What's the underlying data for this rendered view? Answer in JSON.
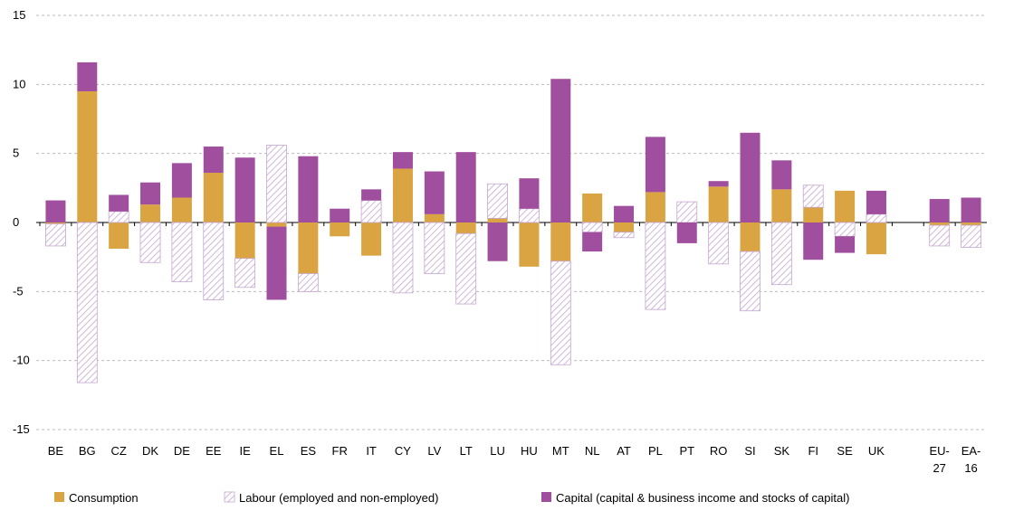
{
  "chart_data": {
    "type": "bar",
    "stacked": true,
    "grid": true,
    "legend": "bottom",
    "categories": [
      "BE",
      "BG",
      "CZ",
      "DK",
      "DE",
      "EE",
      "IE",
      "EL",
      "ES",
      "FR",
      "IT",
      "CY",
      "LV",
      "LT",
      "LU",
      "HU",
      "MT",
      "NL",
      "AT",
      "PL",
      "PT",
      "RO",
      "SI",
      "SK",
      "FI",
      "SE",
      "UK",
      null,
      "EU-27",
      "EA-16"
    ],
    "ylim": [
      -15,
      15
    ],
    "yticks": [
      -15,
      -10,
      -5,
      0,
      5,
      10,
      15
    ],
    "series": [
      {
        "name": "Consumption",
        "color": "#d9a441",
        "values": [
          -0.1,
          9.5,
          -1.9,
          1.3,
          1.8,
          3.6,
          -2.6,
          -0.3,
          -3.7,
          -1.0,
          -2.4,
          3.9,
          0.6,
          -0.8,
          0.3,
          -3.2,
          -2.8,
          2.1,
          -0.7,
          2.2,
          0,
          2.6,
          -2.1,
          2.4,
          1.1,
          2.3,
          -2.3,
          null,
          -0.2,
          -0.2
        ]
      },
      {
        "name": "Labour (employed and non-employed)",
        "color": "#c4a6cf",
        "pattern": "hatch",
        "values": [
          -1.6,
          -11.6,
          0.8,
          -2.9,
          -4.3,
          -5.6,
          -2.1,
          5.6,
          -1.3,
          0,
          1.6,
          -5.1,
          -3.7,
          -5.1,
          2.5,
          1.0,
          -7.5,
          -0.7,
          -0.4,
          -6.3,
          1.5,
          -3.0,
          -4.3,
          -4.5,
          1.6,
          -1.0,
          0.6,
          null,
          -1.5,
          -1.6
        ]
      },
      {
        "name": "Capital (capital & business income and stocks of capital)",
        "color": "#a04f9e",
        "values": [
          1.6,
          2.1,
          1.2,
          1.6,
          2.5,
          1.9,
          4.7,
          -5.3,
          4.8,
          1.0,
          0.8,
          1.2,
          3.1,
          5.1,
          -2.8,
          2.2,
          10.4,
          -1.4,
          1.2,
          4.0,
          -1.5,
          0.4,
          6.5,
          2.1,
          -2.7,
          -1.2,
          1.7,
          null,
          1.7,
          1.8
        ]
      }
    ]
  }
}
